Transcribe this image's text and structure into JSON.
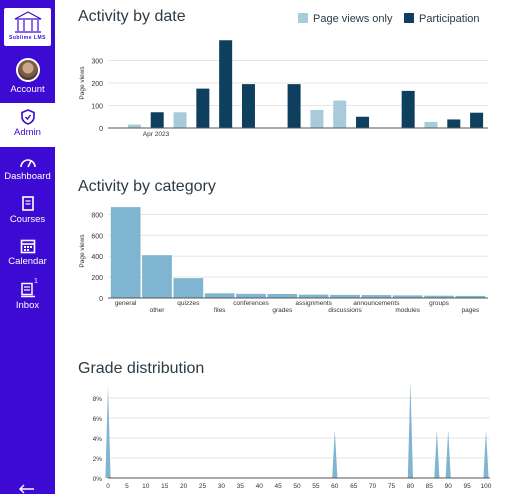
{
  "nav": {
    "logo_text": "Sublime LMS",
    "items": [
      {
        "label": "Account",
        "icon": "avatar"
      },
      {
        "label": "Admin",
        "icon": "shield-icon"
      },
      {
        "label": "Dashboard",
        "icon": "dashboard-icon"
      },
      {
        "label": "Courses",
        "icon": "book-icon"
      },
      {
        "label": "Calendar",
        "icon": "calendar-icon"
      },
      {
        "label": "Inbox",
        "icon": "inbox-icon",
        "badge": "1"
      }
    ]
  },
  "colors": {
    "nav_bg": "#3c0ad3",
    "light": "#a8cbdb",
    "dark": "#0e3f5e",
    "category": "#7fb5d1"
  },
  "legend": {
    "page_views": "Page views only",
    "participation": "Participation"
  },
  "chart_data": [
    {
      "type": "bar",
      "title": "Activity by date",
      "ylabel": "Page views",
      "ylim": [
        0,
        400
      ],
      "yticks": [
        0,
        100,
        200,
        300
      ],
      "xtick_labels": [
        "Apr 2023"
      ],
      "series": [
        {
          "name": "Page views only",
          "values": [
            15,
            0,
            70,
            0,
            0,
            0,
            0,
            0,
            80,
            122,
            0,
            0,
            0,
            27,
            0,
            5
          ]
        },
        {
          "name": "Participation",
          "values": [
            0,
            70,
            0,
            175,
            390,
            195,
            0,
            195,
            0,
            0,
            50,
            0,
            165,
            0,
            38,
            68
          ]
        }
      ]
    },
    {
      "type": "bar",
      "title": "Activity by category",
      "ylabel": "Page views",
      "ylim": [
        0,
        900
      ],
      "yticks": [
        0,
        200,
        400,
        600,
        800
      ],
      "categories": [
        "general",
        "other",
        "quizzes",
        "files",
        "conferences",
        "grades",
        "assignments",
        "discussions",
        "announcements",
        "modules",
        "groups",
        "pages"
      ],
      "values": [
        870,
        410,
        190,
        45,
        40,
        38,
        32,
        30,
        28,
        25,
        22,
        20
      ]
    },
    {
      "type": "area",
      "title": "Grade distribution",
      "ylim": [
        0,
        9
      ],
      "yticks": [
        "0%",
        "2%",
        "4%",
        "6%",
        "8%"
      ],
      "x": [
        0,
        5,
        10,
        15,
        20,
        25,
        30,
        35,
        40,
        45,
        50,
        55,
        60,
        65,
        70,
        75,
        80,
        85,
        90,
        95,
        100
      ],
      "peaks": [
        {
          "x": 0,
          "y": 9.2
        },
        {
          "x": 60,
          "y": 4.8
        },
        {
          "x": 80,
          "y": 9.6
        },
        {
          "x": 87,
          "y": 4.8
        },
        {
          "x": 90,
          "y": 4.8
        },
        {
          "x": 100,
          "y": 4.8
        }
      ]
    }
  ]
}
